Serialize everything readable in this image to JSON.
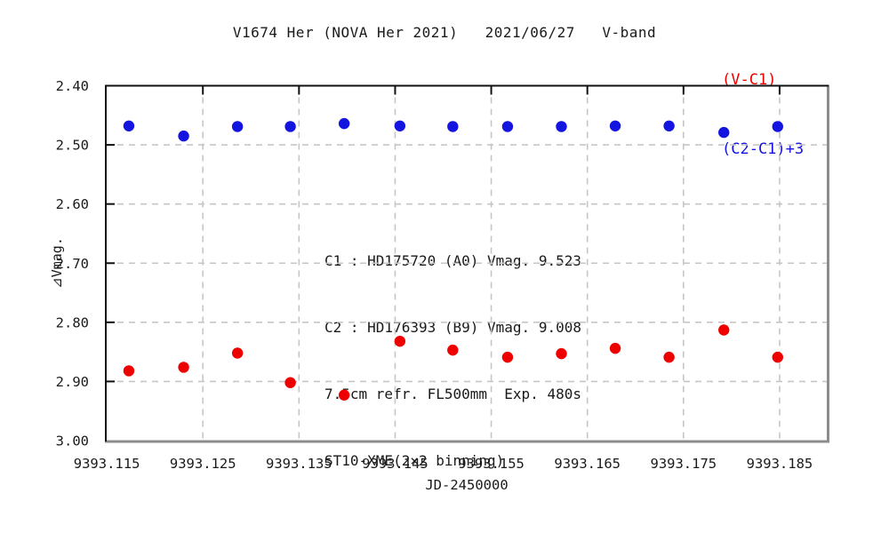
{
  "chart_data": {
    "type": "scatter",
    "title": "V1674 Her (NOVA Her 2021)   2021/06/27   V-band",
    "xlabel": "JD-2450000",
    "ylabel": "⊿Vmag.",
    "xlim": [
      9393.1149,
      9393.19
    ],
    "ylim": [
      3.0,
      2.4
    ],
    "y_axis_inverted": true,
    "grid": true,
    "grid_style": "dashed",
    "legend_position": "top-right",
    "marker": "circle",
    "xtick_labels": [
      "9393.115",
      "9393.125",
      "9393.135",
      "9393.145",
      "9393.155",
      "9393.165",
      "9393.175",
      "9393.185"
    ],
    "ytick_labels": [
      "2.40",
      "2.50",
      "2.60",
      "2.70",
      "2.80",
      "2.90",
      "3.00"
    ],
    "x": [
      9393.1173,
      9393.123,
      9393.1286,
      9393.1341,
      9393.1397,
      9393.1455,
      9393.151,
      9393.1567,
      9393.1623,
      9393.1679,
      9393.1735,
      9393.1792,
      9393.1848
    ],
    "series": [
      {
        "name": "(V-C1)",
        "color": "#ee0000",
        "values": [
          2.882,
          2.876,
          2.852,
          2.902,
          2.923,
          2.832,
          2.847,
          2.859,
          2.853,
          2.844,
          2.859,
          2.813,
          2.859
        ]
      },
      {
        "name": "(C2-C1)+3",
        "color": "#1414e0",
        "values": [
          2.468,
          2.485,
          2.469,
          2.469,
          2.464,
          2.468,
          2.469,
          2.469,
          2.469,
          2.468,
          2.468,
          2.479,
          2.469
        ]
      }
    ],
    "annotation": [
      "C1 : HD175720 (A0) Vmag. 9.523",
      "C2 : HD176393 (B9) Vmag. 9.008",
      "7.5cm refr. FL500mm  Exp. 480s",
      "ST10-XME(2×2 binning)"
    ]
  },
  "colors": {
    "frame_dark": "#111111",
    "frame_shadow": "#8c8c8c",
    "gridline": "#c6c6c6",
    "background": "#ffffff"
  }
}
